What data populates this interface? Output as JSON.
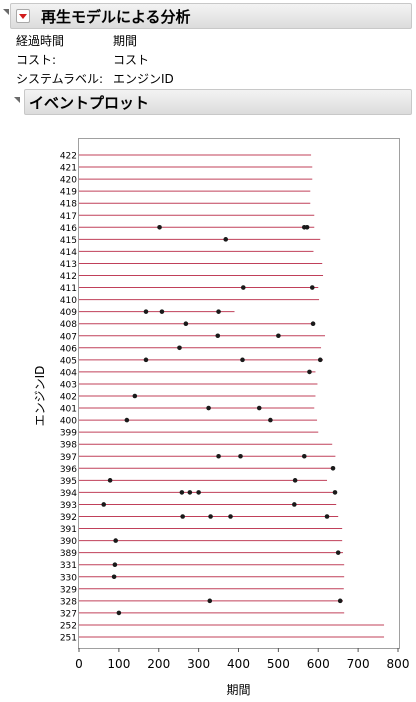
{
  "report": {
    "title": "再生モデルによる分析",
    "fields": [
      {
        "label": "経過時間",
        "value": "期間"
      },
      {
        "label": "コスト:",
        "value": "コスト"
      },
      {
        "label": "システムラベル:",
        "value": "エンジンID"
      }
    ]
  },
  "event_plot": {
    "title": "イベントプロット"
  },
  "chart_data": {
    "type": "scatter",
    "title": "",
    "xlabel": "期間",
    "ylabel": "エンジンID",
    "xlim": [
      0,
      800
    ],
    "x_ticks": [
      0,
      100,
      200,
      300,
      400,
      500,
      600,
      700,
      800
    ],
    "line_color": "#c0405a",
    "point_color": "#1a1a1a",
    "engines": [
      {
        "id": "422",
        "end": 582,
        "events": []
      },
      {
        "id": "421",
        "end": 585,
        "events": []
      },
      {
        "id": "420",
        "end": 585,
        "events": []
      },
      {
        "id": "419",
        "end": 580,
        "events": []
      },
      {
        "id": "418",
        "end": 580,
        "events": []
      },
      {
        "id": "417",
        "end": 590,
        "events": []
      },
      {
        "id": "416",
        "end": 590,
        "events": [
          202,
          565,
          572
        ]
      },
      {
        "id": "415",
        "end": 605,
        "events": [
          368
        ]
      },
      {
        "id": "414",
        "end": 588,
        "events": []
      },
      {
        "id": "413",
        "end": 610,
        "events": []
      },
      {
        "id": "412",
        "end": 612,
        "events": []
      },
      {
        "id": "411",
        "end": 600,
        "events": [
          412,
          585
        ]
      },
      {
        "id": "410",
        "end": 602,
        "events": []
      },
      {
        "id": "409",
        "end": 390,
        "events": [
          168,
          208,
          350
        ]
      },
      {
        "id": "408",
        "end": 592,
        "events": [
          268,
          587
        ]
      },
      {
        "id": "407",
        "end": 617,
        "events": [
          348,
          500
        ]
      },
      {
        "id": "406",
        "end": 607,
        "events": [
          252
        ]
      },
      {
        "id": "405",
        "end": 612,
        "events": [
          168,
          410,
          605
        ]
      },
      {
        "id": "404",
        "end": 593,
        "events": [
          578
        ]
      },
      {
        "id": "403",
        "end": 598,
        "events": []
      },
      {
        "id": "402",
        "end": 593,
        "events": [
          140
        ]
      },
      {
        "id": "401",
        "end": 590,
        "events": [
          325,
          452
        ]
      },
      {
        "id": "400",
        "end": 597,
        "events": [
          120,
          480
        ]
      },
      {
        "id": "399",
        "end": 600,
        "events": []
      },
      {
        "id": "398",
        "end": 635,
        "events": []
      },
      {
        "id": "397",
        "end": 643,
        "events": [
          350,
          405,
          565
        ]
      },
      {
        "id": "396",
        "end": 637,
        "events": [
          637
        ]
      },
      {
        "id": "395",
        "end": 622,
        "events": [
          78,
          542
        ]
      },
      {
        "id": "394",
        "end": 645,
        "events": [
          258,
          278,
          300,
          642
        ]
      },
      {
        "id": "393",
        "end": 645,
        "events": [
          62,
          540
        ]
      },
      {
        "id": "392",
        "end": 650,
        "events": [
          260,
          330,
          380,
          622
        ]
      },
      {
        "id": "391",
        "end": 660,
        "events": []
      },
      {
        "id": "390",
        "end": 660,
        "events": [
          92
        ]
      },
      {
        "id": "389",
        "end": 662,
        "events": [
          650
        ]
      },
      {
        "id": "331",
        "end": 665,
        "events": [
          90
        ]
      },
      {
        "id": "330",
        "end": 665,
        "events": [
          88
        ]
      },
      {
        "id": "329",
        "end": 664,
        "events": []
      },
      {
        "id": "328",
        "end": 662,
        "events": [
          328,
          655
        ]
      },
      {
        "id": "327",
        "end": 665,
        "events": [
          100
        ]
      },
      {
        "id": "252",
        "end": 765,
        "events": []
      },
      {
        "id": "251",
        "end": 765,
        "events": []
      }
    ]
  }
}
